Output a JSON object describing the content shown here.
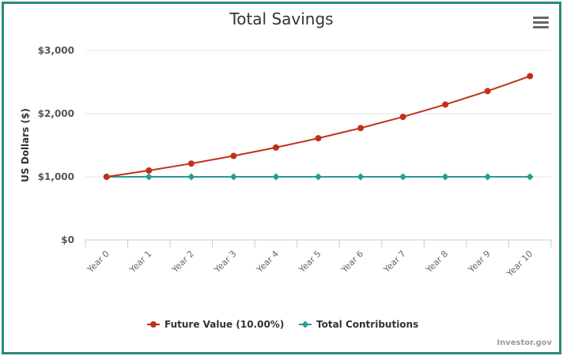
{
  "chart_data": {
    "type": "line",
    "title": "Total Savings",
    "ylabel": "US Dollars ($)",
    "xlabel": "",
    "categories": [
      "Year 0",
      "Year 1",
      "Year 2",
      "Year 3",
      "Year 4",
      "Year 5",
      "Year 6",
      "Year 7",
      "Year 8",
      "Year 9",
      "Year 10"
    ],
    "y_ticks": [
      "$0",
      "$1,000",
      "$2,000",
      "$3,000"
    ],
    "ylim": [
      0,
      3000
    ],
    "grid": true,
    "legend_position": "bottom",
    "series": [
      {
        "name": "Future Value (10.00%)",
        "color": "#c0311b",
        "marker": "circle",
        "values": [
          1000,
          1100,
          1210,
          1331,
          1464,
          1611,
          1772,
          1949,
          2144,
          2358,
          2594
        ]
      },
      {
        "name": "Total Contributions",
        "color": "#2a9a93",
        "marker": "diamond",
        "values": [
          1000,
          1000,
          1000,
          1000,
          1000,
          1000,
          1000,
          1000,
          1000,
          1000,
          1000
        ]
      }
    ]
  },
  "credit": "Investor.gov",
  "menu_icon": "hamburger-menu-icon"
}
